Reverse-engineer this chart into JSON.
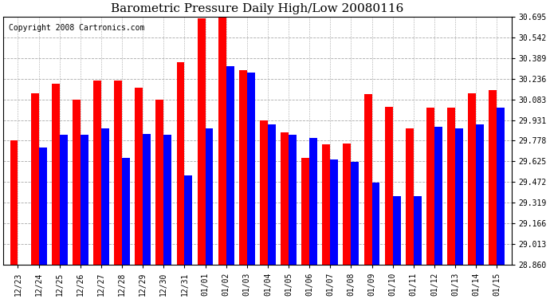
{
  "title": "Barometric Pressure Daily High/Low 20080116",
  "copyright": "Copyright 2008 Cartronics.com",
  "dates": [
    "12/23",
    "12/24",
    "12/25",
    "12/26",
    "12/27",
    "12/28",
    "12/29",
    "12/30",
    "12/31",
    "01/01",
    "01/02",
    "01/03",
    "01/04",
    "01/05",
    "01/06",
    "01/07",
    "01/08",
    "01/09",
    "01/10",
    "01/11",
    "01/12",
    "01/13",
    "01/14",
    "01/15"
  ],
  "highs": [
    29.78,
    30.13,
    30.2,
    30.08,
    30.22,
    30.22,
    30.17,
    30.08,
    30.36,
    30.68,
    30.69,
    30.3,
    29.93,
    29.84,
    29.65,
    29.75,
    29.76,
    30.12,
    30.03,
    29.87,
    30.02,
    30.02,
    30.13,
    30.15
  ],
  "lows": [
    28.86,
    29.73,
    29.82,
    29.82,
    29.87,
    29.65,
    29.83,
    29.82,
    29.52,
    29.87,
    30.33,
    30.28,
    29.9,
    29.82,
    29.8,
    29.64,
    29.62,
    29.47,
    29.37,
    29.37,
    29.88,
    29.87,
    29.9,
    30.02
  ],
  "high_color": "#ff0000",
  "low_color": "#0000ff",
  "bg_color": "#ffffff",
  "plot_bg_color": "#ffffff",
  "grid_color": "#aaaaaa",
  "yticks": [
    28.86,
    29.013,
    29.166,
    29.319,
    29.472,
    29.625,
    29.778,
    29.931,
    30.083,
    30.236,
    30.389,
    30.542,
    30.695
  ],
  "ylim": [
    28.86,
    30.695
  ],
  "bar_width": 0.38,
  "title_fontsize": 11,
  "tick_fontsize": 7,
  "copyright_fontsize": 7
}
